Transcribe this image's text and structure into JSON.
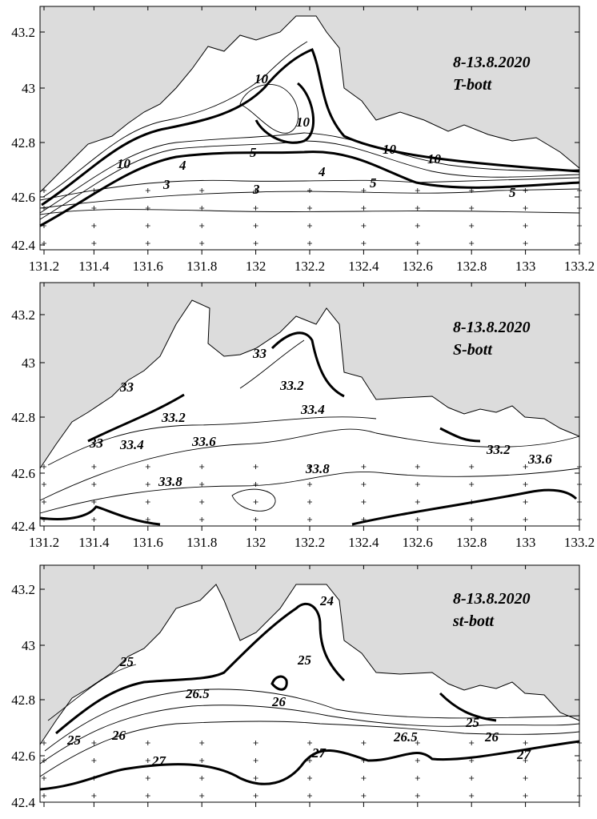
{
  "x_ticks": [
    "131.2",
    "131.4",
    "131.6",
    "131.8",
    "132",
    "132.2",
    "132.4",
    "132.6",
    "132.8",
    "133",
    "133.2"
  ],
  "y_ticks": [
    "43.2",
    "43",
    "42.8",
    "42.6",
    "42.4"
  ],
  "panels": [
    {
      "title_date": "8-13.8.2020",
      "title_param": "T-bott",
      "contour_labels": [
        "10",
        "10",
        "10",
        "10",
        "10",
        "5",
        "5",
        "5",
        "4",
        "4",
        "3",
        "3"
      ]
    },
    {
      "title_date": "8-13.8.2020",
      "title_param": "S-bott",
      "contour_labels": [
        "33",
        "33",
        "33",
        "33.2",
        "33.2",
        "33.2",
        "33.4",
        "33.4",
        "33.6",
        "33.6",
        "33.8",
        "33.8"
      ]
    },
    {
      "title_date": "8-13.8.2020",
      "title_param": "st-bott",
      "contour_labels": [
        "24",
        "25",
        "25",
        "26",
        "26",
        "25",
        "25",
        "26",
        "26.5",
        "26.5",
        "27",
        "27",
        "27"
      ]
    }
  ],
  "colors": {
    "land": "#dcdcdc",
    "sea": "#ffffff",
    "lines": "#000000"
  }
}
